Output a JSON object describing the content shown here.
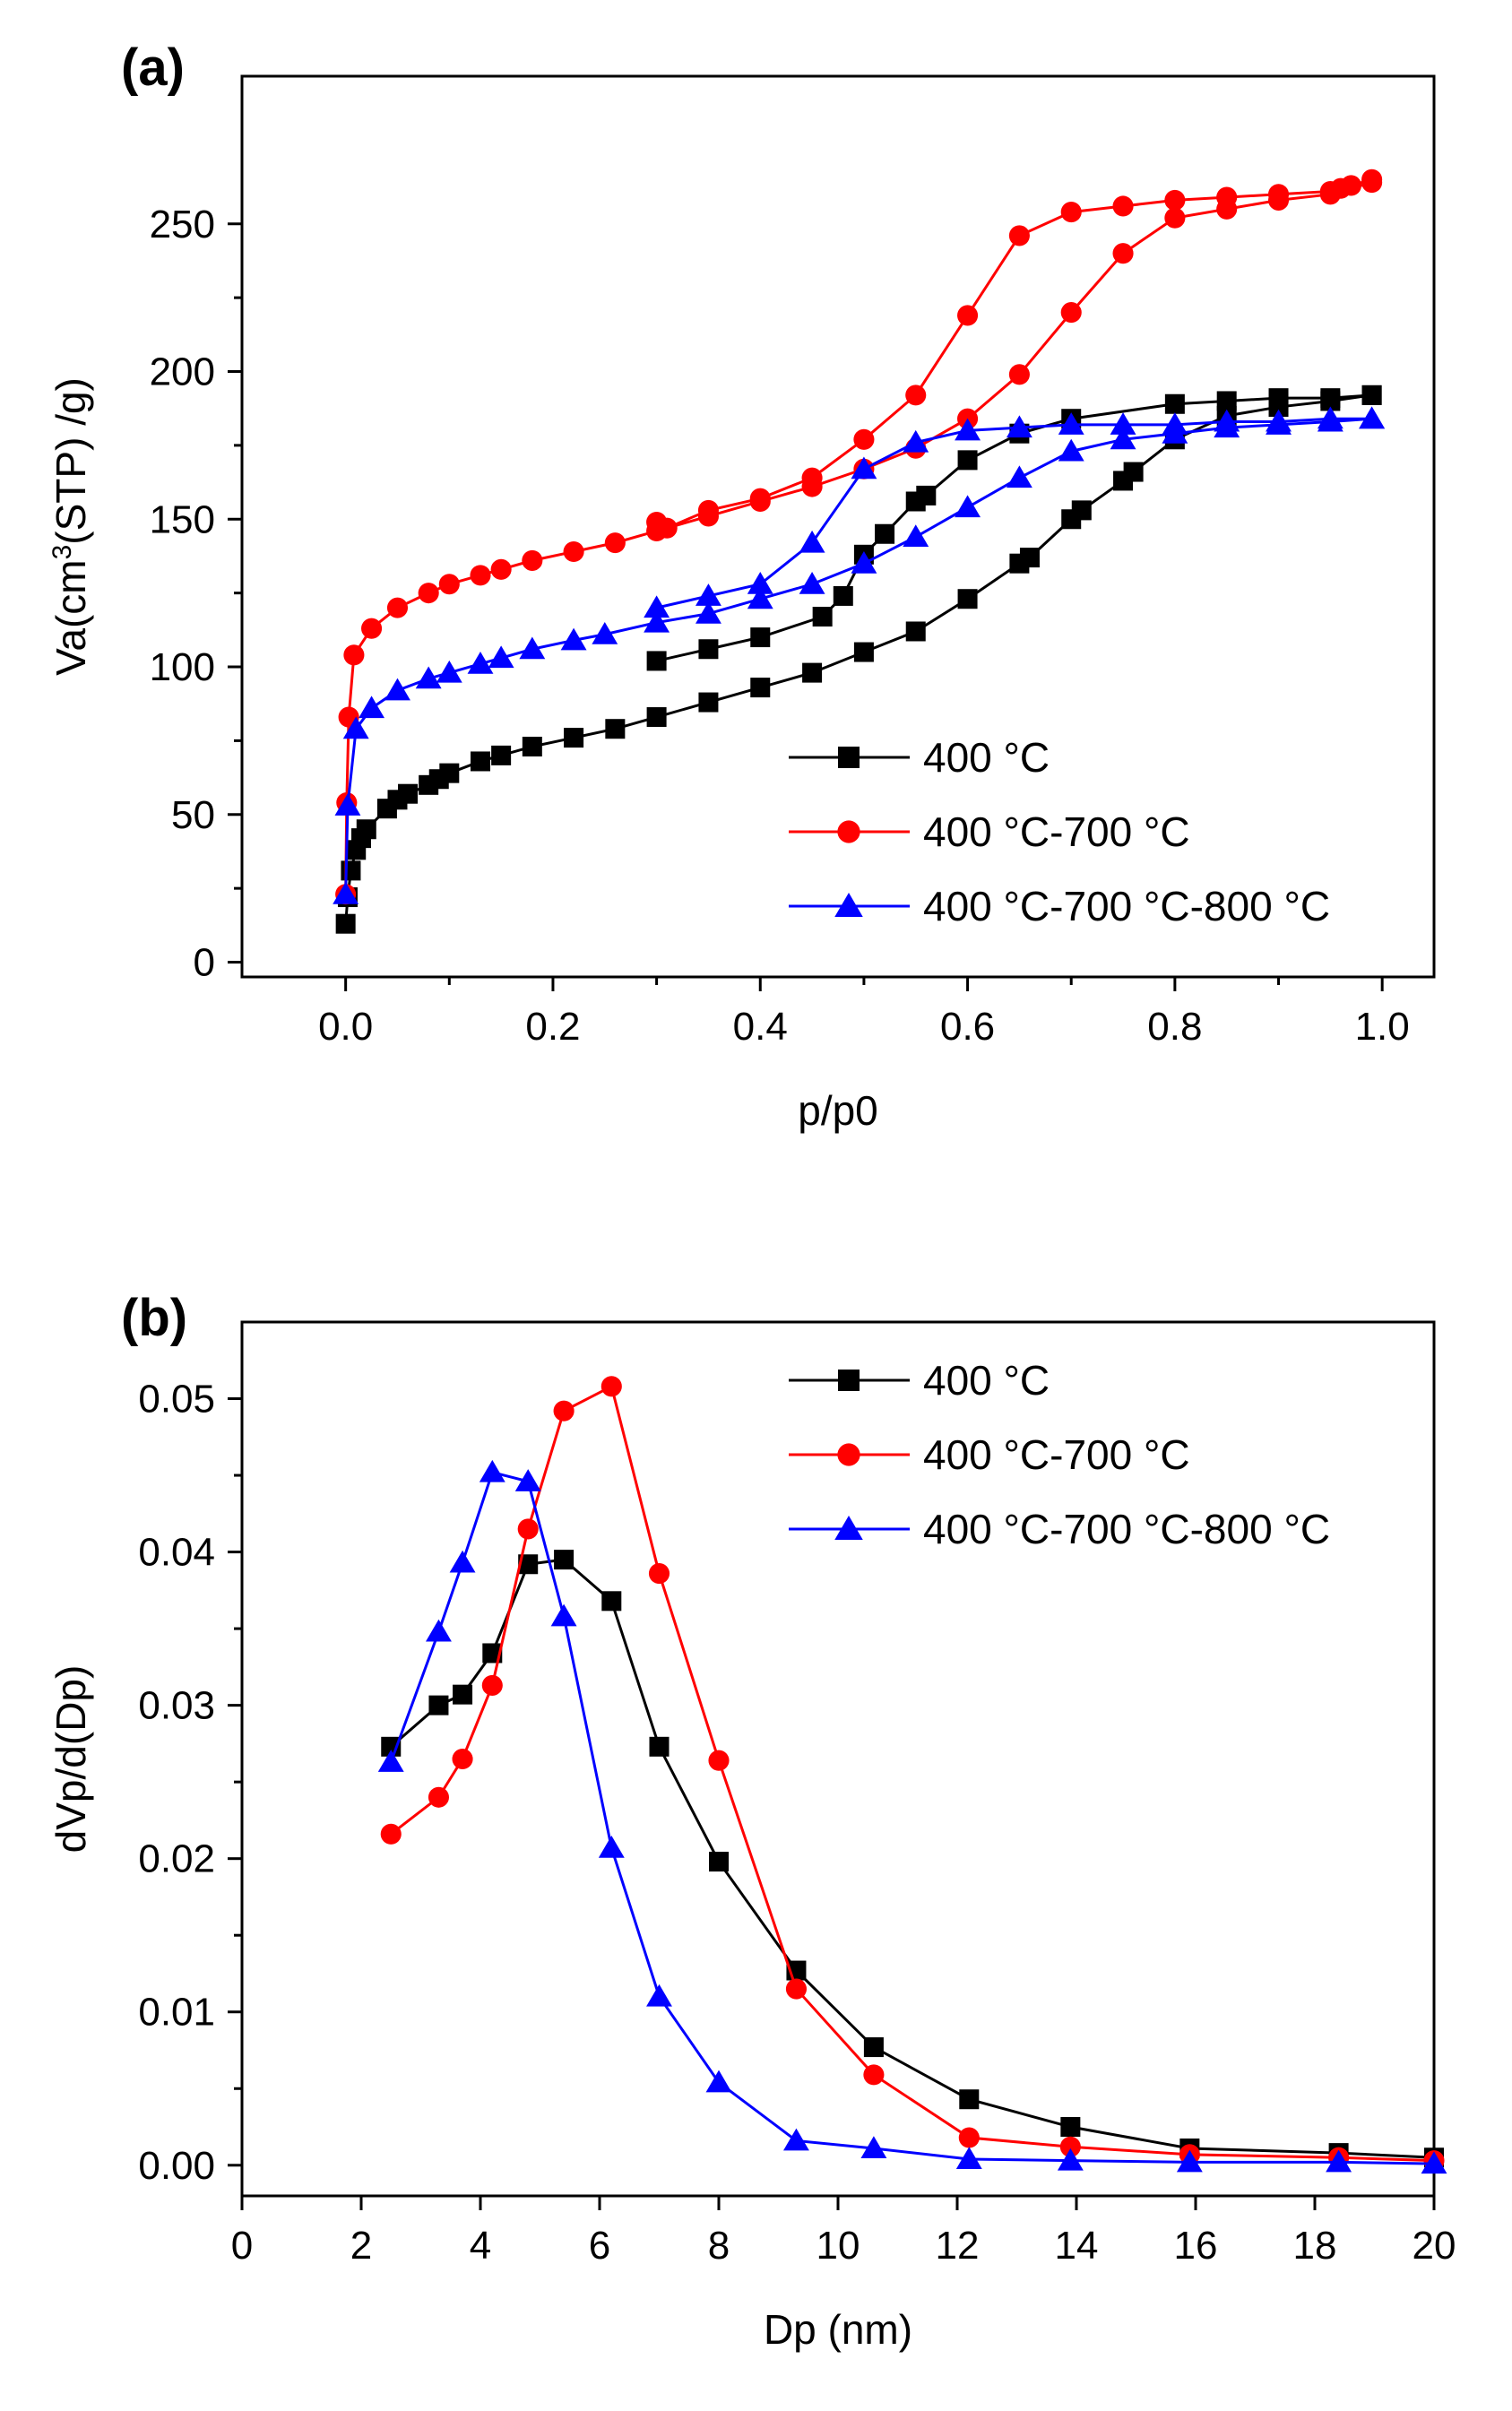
{
  "chart_data": [
    {
      "type": "scatter",
      "panel_label": "(a)",
      "xlabel": "p/p0",
      "ylabel": "Va(cm³(STP) /g)",
      "xlim": [
        -0.1,
        1.05
      ],
      "ylim": [
        -5,
        300
      ],
      "xticks": [
        0.0,
        0.2,
        0.4,
        0.6,
        0.8,
        1.0
      ],
      "xtick_labels": [
        "0.0",
        "0.2",
        "0.4",
        "0.6",
        "0.8",
        "1.0"
      ],
      "yticks": [
        0,
        50,
        100,
        150,
        200,
        250
      ],
      "ytick_labels": [
        "0",
        "50",
        "100",
        "150",
        "200",
        "250"
      ],
      "legend_position": "bottom-right",
      "series": [
        {
          "name": "400 °C",
          "color": "#000000",
          "marker": "square",
          "lines": [
            {
              "x": [
                0.0,
                0.002,
                0.005,
                0.01,
                0.015,
                0.02,
                0.04,
                0.05,
                0.06,
                0.08,
                0.09,
                0.1,
                0.13,
                0.15,
                0.18,
                0.22,
                0.26,
                0.3,
                0.35,
                0.4,
                0.45,
                0.5,
                0.55,
                0.6,
                0.65,
                0.66,
                0.7,
                0.71,
                0.75,
                0.76,
                0.8,
                0.85,
                0.9,
                0.95,
                0.99
              ],
              "y": [
                13,
                22,
                31,
                38,
                42,
                45,
                52,
                55,
                57,
                60,
                62,
                64,
                68,
                70,
                73,
                76,
                79,
                83,
                88,
                93,
                98,
                105,
                112,
                123,
                135,
                137,
                150,
                153,
                163,
                166,
                177,
                185,
                188,
                190,
                192
              ]
            },
            {
              "x": [
                0.99,
                0.95,
                0.9,
                0.85,
                0.8,
                0.7,
                0.65,
                0.6,
                0.56,
                0.55,
                0.52,
                0.5,
                0.48,
                0.46,
                0.4,
                0.35,
                0.3
              ],
              "y": [
                192,
                191,
                191,
                190,
                189,
                184,
                179,
                170,
                158,
                156,
                145,
                138,
                124,
                117,
                110,
                106,
                102
              ]
            }
          ]
        },
        {
          "name": "400 °C-700 °C",
          "color": "#ff0000",
          "marker": "circle",
          "lines": [
            {
              "x": [
                0.0,
                0.001,
                0.003,
                0.008,
                0.025,
                0.05,
                0.08,
                0.1,
                0.13,
                0.15,
                0.18,
                0.22,
                0.26,
                0.3,
                0.35,
                0.4,
                0.45,
                0.5,
                0.55,
                0.6,
                0.65,
                0.7,
                0.75,
                0.8,
                0.85,
                0.9,
                0.95,
                0.99
              ],
              "y": [
                23,
                54,
                83,
                104,
                113,
                120,
                125,
                128,
                131,
                133,
                136,
                139,
                142,
                146,
                151,
                156,
                161,
                167,
                174,
                184,
                199,
                220,
                240,
                252,
                255,
                258,
                260,
                264
              ]
            },
            {
              "x": [
                0.99,
                0.97,
                0.96,
                0.95,
                0.9,
                0.85,
                0.8,
                0.75,
                0.7,
                0.65,
                0.6,
                0.55,
                0.5,
                0.45,
                0.4,
                0.35,
                0.31,
                0.3
              ],
              "y": [
                265,
                263,
                262,
                261,
                260,
                259,
                258,
                256,
                254,
                246,
                219,
                192,
                177,
                164,
                157,
                153,
                147,
                149
              ]
            }
          ]
        },
        {
          "name": "400 °C-700 °C-800 °C",
          "color": "#0000ff",
          "marker": "triangle",
          "lines": [
            {
              "x": [
                0.0,
                0.002,
                0.01,
                0.025,
                0.05,
                0.08,
                0.1,
                0.13,
                0.15,
                0.18,
                0.22,
                0.25,
                0.3,
                0.35,
                0.4,
                0.45,
                0.5,
                0.55,
                0.6,
                0.65,
                0.7,
                0.75,
                0.8,
                0.85,
                0.9,
                0.95,
                0.99
              ],
              "y": [
                23,
                53,
                79,
                86,
                92,
                96,
                98,
                101,
                103,
                106,
                109,
                111,
                115,
                118,
                123,
                128,
                135,
                144,
                154,
                164,
                173,
                177,
                179,
                181,
                182,
                183,
                184
              ]
            },
            {
              "x": [
                0.99,
                0.95,
                0.9,
                0.85,
                0.8,
                0.75,
                0.7,
                0.65,
                0.6,
                0.55,
                0.5,
                0.45,
                0.4,
                0.35,
                0.3
              ],
              "y": [
                184,
                184,
                183,
                183,
                182,
                182,
                182,
                181,
                180,
                176,
                167,
                142,
                128,
                124,
                120
              ]
            }
          ]
        }
      ]
    },
    {
      "type": "line",
      "panel_label": "(b)",
      "xlabel": "Dp (nm)",
      "ylabel": "dVp/d(Dp)",
      "xlim": [
        0,
        20
      ],
      "ylim": [
        -0.002,
        0.055
      ],
      "xticks": [
        0,
        2,
        4,
        6,
        8,
        10,
        12,
        14,
        16,
        18,
        20
      ],
      "xtick_labels": [
        "0",
        "2",
        "4",
        "6",
        "8",
        "10",
        "12",
        "14",
        "16",
        "18",
        "20"
      ],
      "yticks": [
        0.0,
        0.01,
        0.02,
        0.03,
        0.04,
        0.05
      ],
      "ytick_labels": [
        "0.00",
        "0.01",
        "0.02",
        "0.03",
        "0.04",
        "0.05"
      ],
      "legend_position": "top-right",
      "series": [
        {
          "name": "400 °C",
          "color": "#000000",
          "marker": "square",
          "x": [
            2.5,
            3.3,
            3.7,
            4.2,
            4.8,
            5.4,
            6.2,
            7.0,
            8.0,
            9.3,
            10.6,
            12.2,
            13.9,
            15.9,
            18.4,
            20.0
          ],
          "y": [
            0.0273,
            0.03,
            0.0307,
            0.0334,
            0.0392,
            0.0395,
            0.0368,
            0.0273,
            0.0198,
            0.0127,
            0.0077,
            0.0043,
            0.0025,
            0.0011,
            0.0008,
            0.0005
          ]
        },
        {
          "name": "400 °C-700 °C",
          "color": "#ff0000",
          "marker": "circle",
          "x": [
            2.5,
            3.3,
            3.7,
            4.2,
            4.8,
            5.4,
            6.2,
            7.0,
            8.0,
            9.3,
            10.6,
            12.2,
            13.9,
            15.9,
            18.4,
            20.0
          ],
          "y": [
            0.0216,
            0.024,
            0.0265,
            0.0313,
            0.0415,
            0.0492,
            0.0508,
            0.0386,
            0.0264,
            0.0115,
            0.0059,
            0.0018,
            0.0012,
            0.0007,
            0.0005,
            0.0003
          ]
        },
        {
          "name": "400 °C-700 °C-800 °C",
          "color": "#0000ff",
          "marker": "triangle",
          "x": [
            2.5,
            3.3,
            3.7,
            4.2,
            4.8,
            5.4,
            6.2,
            7.0,
            8.0,
            9.3,
            10.6,
            12.2,
            13.9,
            15.9,
            18.4,
            20.0
          ],
          "y": [
            0.0263,
            0.0348,
            0.0393,
            0.0452,
            0.0446,
            0.0358,
            0.0207,
            0.011,
            0.0054,
            0.0016,
            0.0011,
            0.0004,
            0.0003,
            0.0002,
            0.0002,
            0.0001
          ]
        }
      ]
    }
  ]
}
